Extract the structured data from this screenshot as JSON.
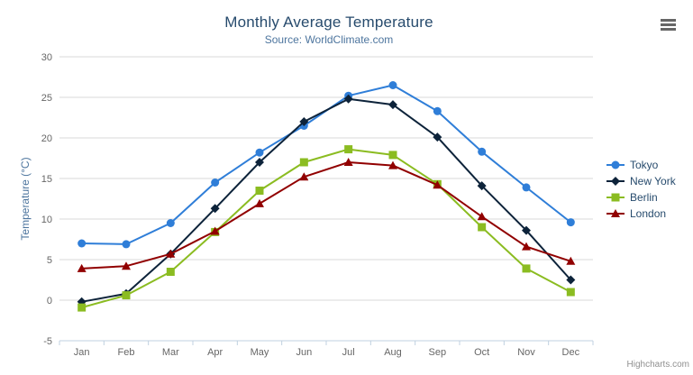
{
  "chart_data": {
    "type": "line",
    "title": "Monthly Average Temperature",
    "subtitle": "Source: WorldClimate.com",
    "xlabel": "",
    "ylabel": "Temperature (°C)",
    "categories": [
      "Jan",
      "Feb",
      "Mar",
      "Apr",
      "May",
      "Jun",
      "Jul",
      "Aug",
      "Sep",
      "Oct",
      "Nov",
      "Dec"
    ],
    "series": [
      {
        "name": "Tokyo",
        "color": "#2f7ed8",
        "marker": "circle",
        "values": [
          7.0,
          6.9,
          9.5,
          14.5,
          18.2,
          21.5,
          25.2,
          26.5,
          23.3,
          18.3,
          13.9,
          9.6
        ]
      },
      {
        "name": "New York",
        "color": "#0d233a",
        "marker": "diamond",
        "values": [
          -0.2,
          0.8,
          5.7,
          11.3,
          17.0,
          22.0,
          24.8,
          24.1,
          20.1,
          14.1,
          8.6,
          2.5
        ]
      },
      {
        "name": "Berlin",
        "color": "#8bbc21",
        "marker": "square",
        "values": [
          -0.9,
          0.6,
          3.5,
          8.4,
          13.5,
          17.0,
          18.6,
          17.9,
          14.3,
          9.0,
          3.9,
          1.0
        ]
      },
      {
        "name": "London",
        "color": "#910000",
        "marker": "triangle",
        "values": [
          3.9,
          4.2,
          5.7,
          8.5,
          11.9,
          15.2,
          17.0,
          16.6,
          14.2,
          10.3,
          6.6,
          4.8
        ]
      }
    ],
    "ylim": [
      -5,
      30
    ],
    "yticks": [
      -5,
      0,
      5,
      10,
      15,
      20,
      25,
      30
    ],
    "grid": "horizontal",
    "legend_position": "right",
    "colors": {
      "grid_line": "#d8d8d8",
      "axis_line": "#c0d0e0",
      "tick_label": "#666666",
      "axis_title": "#4d759e",
      "title": "#274b6d",
      "subtitle": "#4d759e",
      "legend_text": "#274b6d",
      "credits_text": "#909090"
    }
  },
  "credits": {
    "label": "Highcharts.com"
  },
  "menu": {
    "icon": "hamburger-menu-icon"
  }
}
